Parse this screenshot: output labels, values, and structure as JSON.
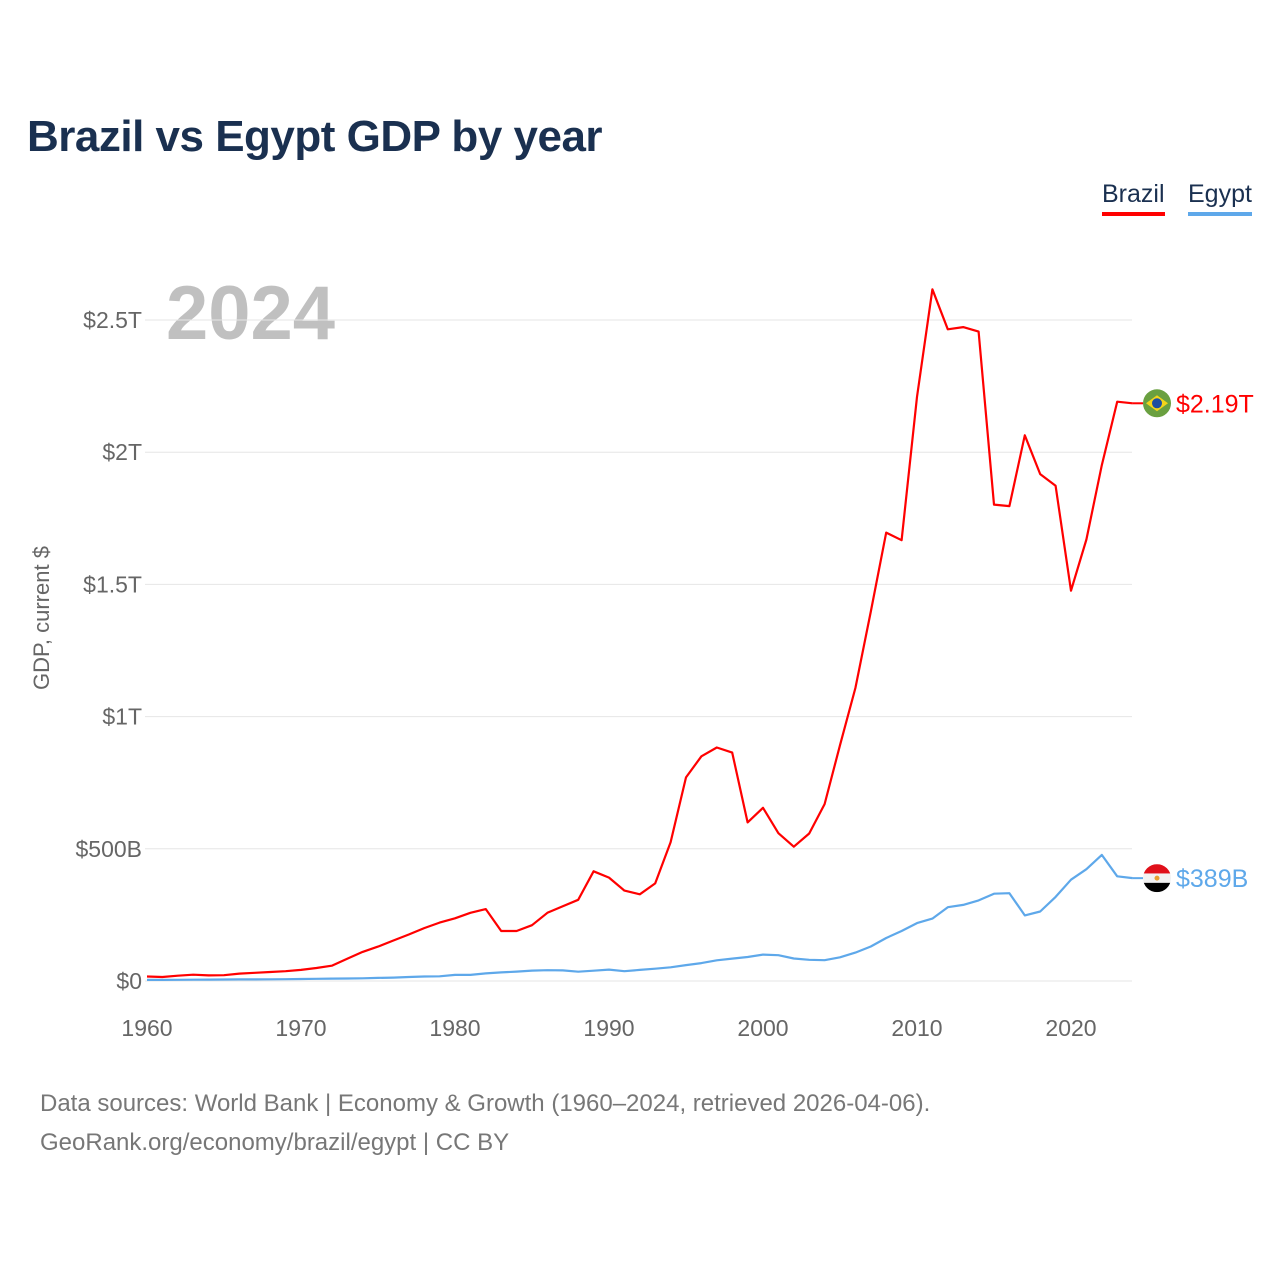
{
  "title": "Brazil vs Egypt GDP by year",
  "year_label": "2024",
  "legend": [
    {
      "label": "Brazil",
      "color": "#ff0000"
    },
    {
      "label": "Egypt",
      "color": "#5ea8ea"
    }
  ],
  "source": {
    "line1": "Data sources: World Bank | Economy & Growth (1960–2024, retrieved 2026-04-06).",
    "line2": "GeoRank.org/economy/brazil/egypt | CC BY"
  },
  "chart_data": {
    "type": "line",
    "title": "Brazil vs Egypt GDP by year",
    "xlabel": "",
    "ylabel": "GDP, current $",
    "xlim": [
      1960,
      2024
    ],
    "ylim": [
      0,
      2700
    ],
    "units": "billions USD",
    "grid": true,
    "legend_position": "top-right",
    "x_ticks": [
      {
        "value": 1960,
        "label": "1960"
      },
      {
        "value": 1970,
        "label": "1970"
      },
      {
        "value": 1980,
        "label": "1980"
      },
      {
        "value": 1990,
        "label": "1990"
      },
      {
        "value": 2000,
        "label": "2000"
      },
      {
        "value": 2010,
        "label": "2010"
      },
      {
        "value": 2020,
        "label": "2020"
      }
    ],
    "y_ticks": [
      {
        "value": 0,
        "label": "$0"
      },
      {
        "value": 500,
        "label": "$500B"
      },
      {
        "value": 1000,
        "label": "$1T"
      },
      {
        "value": 1500,
        "label": "$1.5T"
      },
      {
        "value": 2000,
        "label": "$2T"
      },
      {
        "value": 2500,
        "label": "$2.5T"
      }
    ],
    "start_year": 1960,
    "series": [
      {
        "name": "Brazil",
        "color": "#ff0000",
        "flag": "brazil-flag",
        "end_label": "$2.19T",
        "values": [
          17,
          15,
          20,
          24,
          21,
          22,
          28,
          31,
          34,
          37,
          42,
          49,
          58,
          84,
          110,
          130,
          153,
          176,
          200,
          221,
          237,
          258,
          272,
          189,
          189,
          211,
          258,
          283,
          307,
          415,
          391,
          342,
          328,
          369,
          525,
          770,
          850,
          883,
          864,
          600,
          655,
          559,
          508,
          558,
          669,
          892,
          1108,
          1397,
          1696,
          1667,
          2209,
          2616,
          2465,
          2473,
          2456,
          1802,
          1796,
          2064,
          1917,
          1873,
          1476,
          1670,
          1951,
          2191,
          2185
        ]
      },
      {
        "name": "Egypt",
        "color": "#5ea8ea",
        "flag": "egypt-flag",
        "end_label": "$389B",
        "values": [
          4,
          4.2,
          4.6,
          4.9,
          5.2,
          5.7,
          6,
          6.1,
          6.3,
          6.9,
          7.7,
          8.2,
          8.9,
          9.5,
          10.1,
          11.6,
          13,
          15,
          17,
          17.9,
          22.9,
          23,
          28.7,
          32.5,
          35.6,
          39.5,
          41,
          40,
          35,
          39,
          43,
          36.9,
          41.9,
          46.6,
          51.9,
          60.2,
          67.6,
          78.4,
          84.8,
          90.7,
          99.8,
          97.6,
          85.1,
          80.3,
          78.8,
          89.7,
          107.5,
          130.5,
          162.8,
          189.1,
          219,
          236,
          279,
          288,
          305,
          330,
          332,
          248,
          263,
          318,
          383,
          423,
          477,
          396,
          389
        ]
      }
    ]
  }
}
